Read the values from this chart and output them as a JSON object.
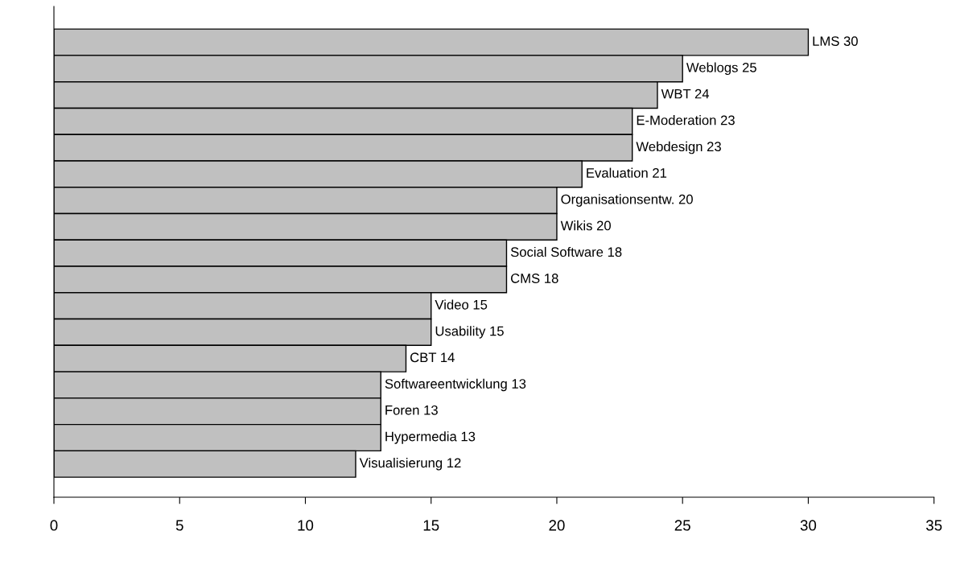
{
  "chart_data": {
    "type": "bar",
    "orientation": "horizontal",
    "categories": [
      null,
      null,
      null,
      null,
      null,
      null,
      null,
      null,
      null,
      null,
      null,
      null,
      null,
      null,
      null,
      null,
      null
    ],
    "values": [
      30,
      25,
      24,
      23,
      23,
      21,
      20,
      20,
      18,
      18,
      15,
      15,
      14,
      13,
      13,
      13,
      12
    ],
    "value_labels": [
      "LMS 30",
      "Weblogs 25",
      "WBT 24",
      "E-Moderation 23",
      "Webdesign 23",
      "Evaluation 21",
      "Organisationsentw. 20",
      "Wikis 20",
      "Social Software 18",
      "CMS 18",
      "Video 15",
      "Usability 15",
      "CBT 14",
      "Softwareentwicklung 13",
      "Foren 13",
      "Hypermedia 13",
      "Visualisierung 12"
    ],
    "color": "#c0c0c0",
    "xlim": [
      0,
      35
    ],
    "xticks": [
      0,
      5,
      10,
      15,
      20,
      25,
      30,
      35
    ]
  }
}
